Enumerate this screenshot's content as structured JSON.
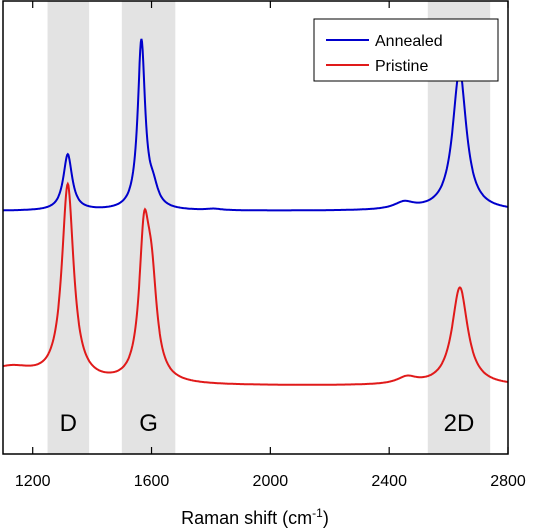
{
  "chart_data": {
    "type": "line",
    "xlabel": "Raman shift (cm",
    "xlabel_sup": "-1",
    "xlabel_close": ")",
    "ylabel": "",
    "xlim": [
      1100,
      2800
    ],
    "x_ticks": [
      1200,
      1600,
      2000,
      2400,
      2800
    ],
    "x_tick_labels": [
      "1200",
      "1600",
      "2000",
      "2400",
      "2800"
    ],
    "y_ticks_shown": false,
    "legend_position": "top-right",
    "bands": [
      {
        "label": "D",
        "x_start": 1250,
        "x_end": 1390
      },
      {
        "label": "G",
        "x_start": 1500,
        "x_end": 1680
      },
      {
        "label": "2D",
        "x_start": 2530,
        "x_end": 2740
      }
    ],
    "band_color": "#e3e3e3",
    "series": [
      {
        "name": "Annealed",
        "color": "#0000cc",
        "baseline": 0.5,
        "peaks": [
          {
            "center": 1318,
            "height": 0.16,
            "width": 18
          },
          {
            "center": 1566,
            "height": 0.48,
            "width": 15
          },
          {
            "center": 1605,
            "height": 0.05,
            "width": 20
          },
          {
            "center": 1810,
            "height": 0.004,
            "width": 30
          },
          {
            "center": 2450,
            "height": 0.02,
            "width": 40
          },
          {
            "center": 2637,
            "height": 0.4,
            "width": 28
          }
        ]
      },
      {
        "name": "Pristine",
        "color": "#e01a1a",
        "baseline": 0.0,
        "peaks": [
          {
            "center": 1318,
            "height": 0.56,
            "width": 24
          },
          {
            "center": 1120,
            "height": 0.05,
            "width": 120
          },
          {
            "center": 1575,
            "height": 0.38,
            "width": 20
          },
          {
            "center": 1600,
            "height": 0.25,
            "width": 22
          },
          {
            "center": 2460,
            "height": 0.02,
            "width": 40
          },
          {
            "center": 2638,
            "height": 0.28,
            "width": 32
          }
        ]
      }
    ]
  }
}
